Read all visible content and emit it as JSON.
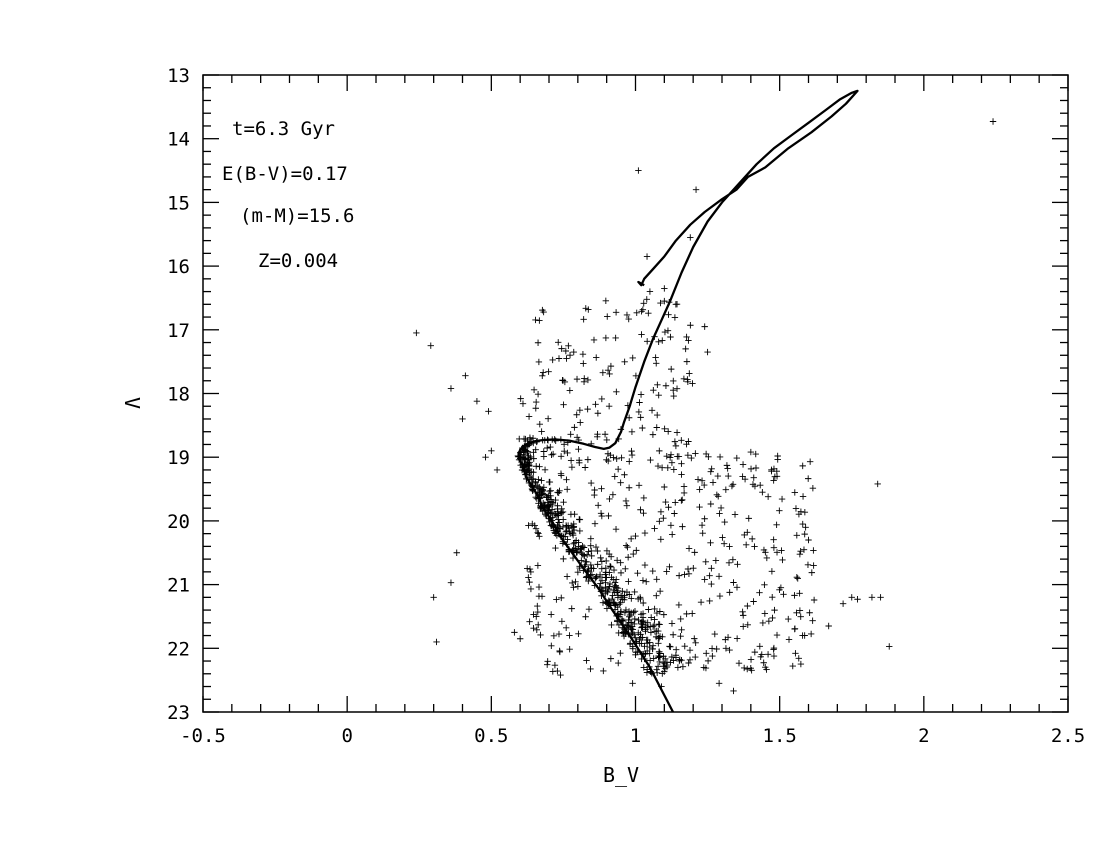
{
  "chart_data": {
    "type": "scatter",
    "xlabel": "B_V",
    "ylabel": "V",
    "xlim": [
      -0.5,
      2.5
    ],
    "ylim": [
      23,
      13
    ],
    "y_inverted": true,
    "xticks": [
      "-0.5",
      "0",
      "0.5",
      "1",
      "1.5",
      "2",
      "2.5"
    ],
    "yticks": [
      "13",
      "14",
      "15",
      "16",
      "17",
      "18",
      "19",
      "20",
      "21",
      "22",
      "23"
    ],
    "annotations": [
      "t=6.3 Gyr",
      "E(B-V)=0.17",
      "(m-M)=15.6",
      "Z=0.004"
    ],
    "isochrone": {
      "x": [
        1.13,
        1.05,
        0.98,
        0.92,
        0.87,
        0.82,
        0.78,
        0.74,
        0.71,
        0.68,
        0.66,
        0.64,
        0.62,
        0.61,
        0.6,
        0.595,
        0.6,
        0.62,
        0.65,
        0.68,
        0.72,
        0.77,
        0.82,
        0.86,
        0.89,
        0.91,
        0.93,
        0.95,
        0.96,
        0.98,
        1.0,
        1.03,
        1.06,
        1.09,
        1.12,
        1.16,
        1.2,
        1.25,
        1.3,
        1.36,
        1.42,
        1.48,
        1.54,
        1.6,
        1.66,
        1.71,
        1.75,
        1.77,
        1.76,
        1.73,
        1.68,
        1.61,
        1.53,
        1.45,
        1.39,
        1.35,
        1.3,
        1.24,
        1.19,
        1.14,
        1.1,
        1.06,
        1.03,
        1.02,
        1.01,
        1.03
      ],
      "y": [
        23.0,
        22.3,
        21.8,
        21.4,
        21.05,
        20.75,
        20.5,
        20.25,
        20.0,
        19.8,
        19.6,
        19.45,
        19.3,
        19.15,
        19.05,
        18.95,
        18.88,
        18.8,
        18.75,
        18.73,
        18.72,
        18.74,
        18.79,
        18.84,
        18.87,
        18.85,
        18.78,
        18.6,
        18.45,
        18.2,
        17.9,
        17.5,
        17.15,
        16.85,
        16.55,
        16.1,
        15.7,
        15.3,
        15.0,
        14.7,
        14.4,
        14.15,
        13.95,
        13.75,
        13.55,
        13.38,
        13.28,
        13.25,
        13.3,
        13.45,
        13.65,
        13.9,
        14.15,
        14.45,
        14.6,
        14.8,
        14.95,
        15.15,
        15.35,
        15.6,
        15.85,
        16.05,
        16.2,
        16.3,
        16.25,
        16.3
      ]
    },
    "points": [
      [
        0.24,
        17.05
      ],
      [
        0.29,
        17.25
      ],
      [
        0.36,
        17.92
      ],
      [
        0.41,
        17.72
      ],
      [
        0.4,
        18.4
      ],
      [
        0.45,
        18.12
      ],
      [
        0.49,
        18.28
      ],
      [
        0.3,
        21.2
      ],
      [
        0.36,
        20.97
      ],
      [
        0.38,
        20.5
      ],
      [
        0.31,
        21.9
      ],
      [
        0.48,
        19.0
      ],
      [
        0.5,
        18.9
      ],
      [
        0.52,
        19.2
      ],
      [
        1.01,
        14.5
      ],
      [
        1.21,
        14.8
      ],
      [
        1.19,
        15.55
      ],
      [
        1.04,
        15.85
      ],
      [
        2.24,
        13.73
      ],
      [
        1.84,
        19.42
      ],
      [
        1.88,
        21.97
      ],
      [
        1.82,
        21.2
      ],
      [
        1.85,
        21.2
      ],
      [
        1.77,
        21.23
      ],
      [
        1.75,
        21.2
      ],
      [
        1.72,
        21.3
      ],
      [
        1.67,
        21.65
      ],
      [
        1.4,
        18.92
      ],
      [
        1.25,
        17.35
      ],
      [
        1.18,
        17.78
      ],
      [
        1.24,
        16.95
      ],
      [
        1.1,
        16.35
      ],
      [
        1.1,
        16.55
      ],
      [
        1.14,
        16.6
      ],
      [
        1.05,
        16.4
      ],
      [
        1.44,
        19.55
      ],
      [
        1.46,
        19.62
      ],
      [
        1.58,
        20.05
      ],
      [
        1.59,
        20.1
      ],
      [
        1.6,
        20.3
      ],
      [
        1.48,
        20.42
      ],
      [
        1.34,
        22.67
      ],
      [
        1.29,
        22.55
      ],
      [
        1.09,
        22.6
      ],
      [
        0.74,
        22.42
      ],
      [
        0.99,
        22.55
      ],
      [
        0.6,
        21.85
      ],
      [
        0.58,
        21.75
      ]
    ]
  }
}
